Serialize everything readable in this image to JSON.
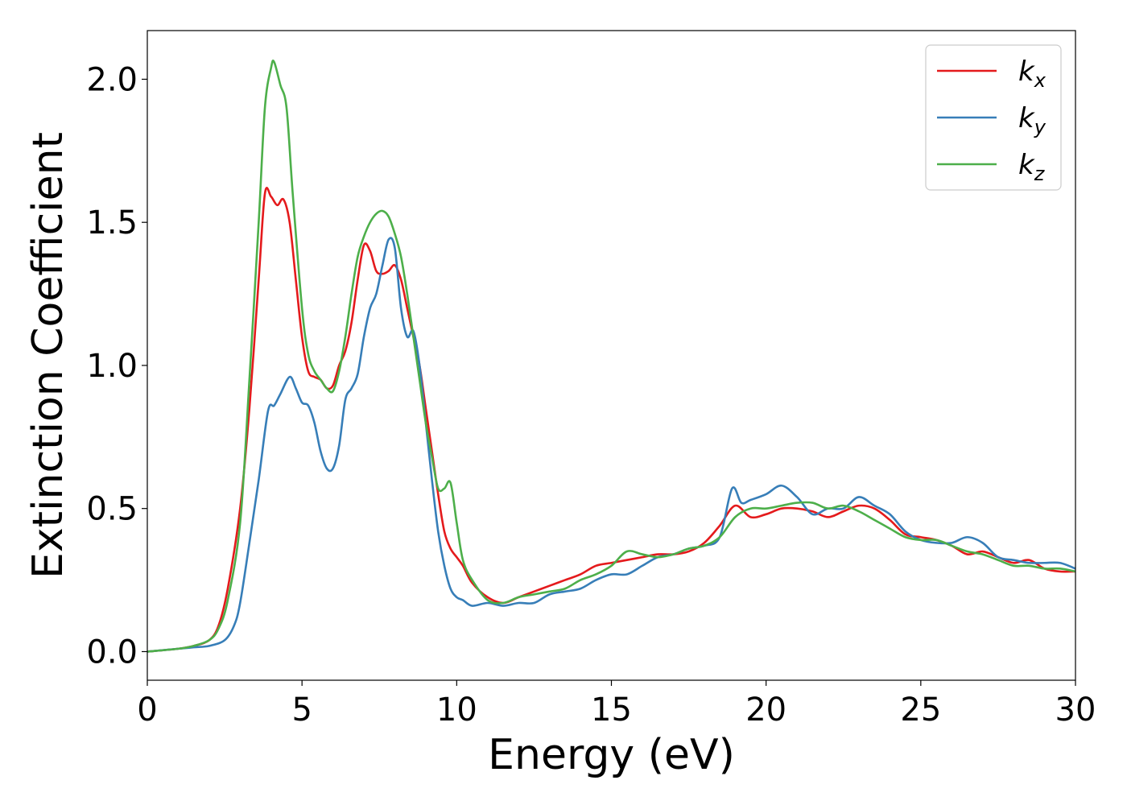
{
  "chart_data": {
    "type": "line",
    "title": "",
    "xlabel": "Energy (eV)",
    "ylabel": "Extinction Coefficient",
    "xlim": [
      0,
      30
    ],
    "ylim": [
      -0.1,
      2.17
    ],
    "xticks": [
      0,
      5,
      10,
      15,
      20,
      25,
      30
    ],
    "xtick_labels": [
      "0",
      "5",
      "10",
      "15",
      "20",
      "25",
      "30"
    ],
    "yticks": [
      0.0,
      0.5,
      1.0,
      1.5,
      2.0
    ],
    "ytick_labels": [
      "0.0",
      "0.5",
      "1.0",
      "1.5",
      "2.0"
    ],
    "grid": false,
    "legend_position": "top-right",
    "series": [
      {
        "name": "k_x",
        "label_main": "k",
        "label_sub": "x",
        "color": "#e41a1c",
        "x": [
          0,
          1,
          1.5,
          2,
          2.3,
          2.6,
          3,
          3.3,
          3.6,
          3.8,
          4,
          4.2,
          4.4,
          4.6,
          4.8,
          5,
          5.2,
          5.4,
          5.6,
          5.8,
          6,
          6.2,
          6.4,
          6.6,
          6.8,
          7,
          7.2,
          7.4,
          7.6,
          7.8,
          8,
          8.2,
          8.4,
          8.6,
          8.8,
          9,
          9.2,
          9.4,
          9.6,
          9.8,
          10,
          10.2,
          10.5,
          11,
          11.5,
          12,
          12.5,
          13,
          13.5,
          14,
          14.5,
          15,
          15.5,
          16,
          16.5,
          17,
          17.5,
          18,
          18.5,
          19,
          19.5,
          20,
          20.5,
          21,
          21.5,
          22,
          22.5,
          23,
          23.5,
          24,
          24.5,
          25,
          25.5,
          26,
          26.5,
          27,
          27.5,
          28,
          28.5,
          29,
          29.5,
          30
        ],
        "y": [
          0,
          0.01,
          0.02,
          0.04,
          0.09,
          0.22,
          0.5,
          0.85,
          1.3,
          1.6,
          1.59,
          1.56,
          1.58,
          1.5,
          1.3,
          1.1,
          0.98,
          0.96,
          0.95,
          0.92,
          0.93,
          1.0,
          1.05,
          1.15,
          1.3,
          1.42,
          1.4,
          1.33,
          1.32,
          1.33,
          1.35,
          1.3,
          1.2,
          1.1,
          1.0,
          0.85,
          0.7,
          0.55,
          0.42,
          0.36,
          0.33,
          0.3,
          0.24,
          0.19,
          0.17,
          0.19,
          0.21,
          0.23,
          0.25,
          0.27,
          0.3,
          0.31,
          0.32,
          0.33,
          0.34,
          0.34,
          0.35,
          0.38,
          0.44,
          0.51,
          0.47,
          0.48,
          0.5,
          0.5,
          0.49,
          0.47,
          0.49,
          0.51,
          0.5,
          0.46,
          0.41,
          0.4,
          0.39,
          0.37,
          0.34,
          0.35,
          0.33,
          0.31,
          0.32,
          0.29,
          0.28,
          0.28
        ]
      },
      {
        "name": "k_y",
        "label_main": "k",
        "label_sub": "y",
        "color": "#377eb8",
        "x": [
          0,
          1,
          1.5,
          2,
          2.5,
          2.8,
          3,
          3.3,
          3.6,
          3.9,
          4.1,
          4.3,
          4.6,
          4.8,
          5,
          5.2,
          5.4,
          5.6,
          5.8,
          6,
          6.2,
          6.4,
          6.6,
          6.8,
          7,
          7.2,
          7.4,
          7.6,
          7.8,
          8,
          8.2,
          8.4,
          8.6,
          8.8,
          9,
          9.2,
          9.4,
          9.6,
          9.8,
          10,
          10.2,
          10.5,
          11,
          11.5,
          12,
          12.5,
          13,
          13.5,
          14,
          14.5,
          15,
          15.5,
          16,
          16.5,
          17,
          17.5,
          18,
          18.5,
          18.9,
          19.2,
          19.5,
          20,
          20.5,
          21,
          21.5,
          22,
          22.5,
          23,
          23.5,
          24,
          24.5,
          25,
          25.5,
          26,
          26.5,
          27,
          27.5,
          28,
          28.5,
          29,
          29.5,
          30
        ],
        "y": [
          0,
          0.01,
          0.015,
          0.02,
          0.04,
          0.09,
          0.17,
          0.38,
          0.6,
          0.84,
          0.86,
          0.9,
          0.96,
          0.92,
          0.87,
          0.86,
          0.8,
          0.7,
          0.64,
          0.64,
          0.72,
          0.88,
          0.92,
          0.97,
          1.1,
          1.2,
          1.25,
          1.35,
          1.44,
          1.41,
          1.2,
          1.1,
          1.12,
          1.0,
          0.8,
          0.6,
          0.42,
          0.3,
          0.22,
          0.19,
          0.18,
          0.16,
          0.17,
          0.16,
          0.17,
          0.17,
          0.2,
          0.21,
          0.22,
          0.25,
          0.27,
          0.27,
          0.3,
          0.33,
          0.34,
          0.36,
          0.37,
          0.4,
          0.57,
          0.52,
          0.53,
          0.55,
          0.58,
          0.54,
          0.48,
          0.5,
          0.5,
          0.54,
          0.51,
          0.48,
          0.42,
          0.39,
          0.38,
          0.38,
          0.4,
          0.38,
          0.33,
          0.32,
          0.31,
          0.31,
          0.31,
          0.29
        ]
      },
      {
        "name": "k_z",
        "label_main": "k",
        "label_sub": "z",
        "color": "#4daf4a",
        "x": [
          0,
          1,
          1.5,
          2,
          2.3,
          2.6,
          3,
          3.3,
          3.6,
          3.8,
          4,
          4.1,
          4.3,
          4.5,
          4.7,
          5,
          5.2,
          5.4,
          5.6,
          5.8,
          6,
          6.2,
          6.4,
          6.6,
          6.8,
          7,
          7.2,
          7.4,
          7.6,
          7.8,
          8,
          8.2,
          8.4,
          8.6,
          8.8,
          9,
          9.2,
          9.4,
          9.6,
          9.8,
          10,
          10.2,
          10.5,
          11,
          11.5,
          12,
          12.5,
          13,
          13.5,
          14,
          14.5,
          15,
          15.5,
          16,
          16.5,
          17,
          17.5,
          18,
          18.5,
          19,
          19.5,
          20,
          20.5,
          21,
          21.5,
          22,
          22.5,
          23,
          23.5,
          24,
          24.5,
          25,
          25.5,
          26,
          26.5,
          27,
          27.5,
          28,
          28.5,
          29,
          29.5,
          30
        ],
        "y": [
          0,
          0.01,
          0.02,
          0.04,
          0.08,
          0.18,
          0.45,
          0.95,
          1.5,
          1.9,
          2.04,
          2.06,
          1.98,
          1.9,
          1.6,
          1.2,
          1.04,
          0.98,
          0.95,
          0.92,
          0.91,
          0.98,
          1.1,
          1.25,
          1.38,
          1.45,
          1.5,
          1.53,
          1.54,
          1.52,
          1.46,
          1.38,
          1.25,
          1.1,
          0.95,
          0.8,
          0.68,
          0.57,
          0.57,
          0.59,
          0.45,
          0.32,
          0.25,
          0.18,
          0.17,
          0.19,
          0.2,
          0.21,
          0.22,
          0.25,
          0.27,
          0.3,
          0.35,
          0.34,
          0.33,
          0.34,
          0.36,
          0.37,
          0.4,
          0.47,
          0.5,
          0.5,
          0.51,
          0.52,
          0.52,
          0.5,
          0.51,
          0.49,
          0.46,
          0.43,
          0.4,
          0.39,
          0.39,
          0.37,
          0.35,
          0.34,
          0.32,
          0.3,
          0.3,
          0.29,
          0.29,
          0.28
        ]
      }
    ]
  }
}
